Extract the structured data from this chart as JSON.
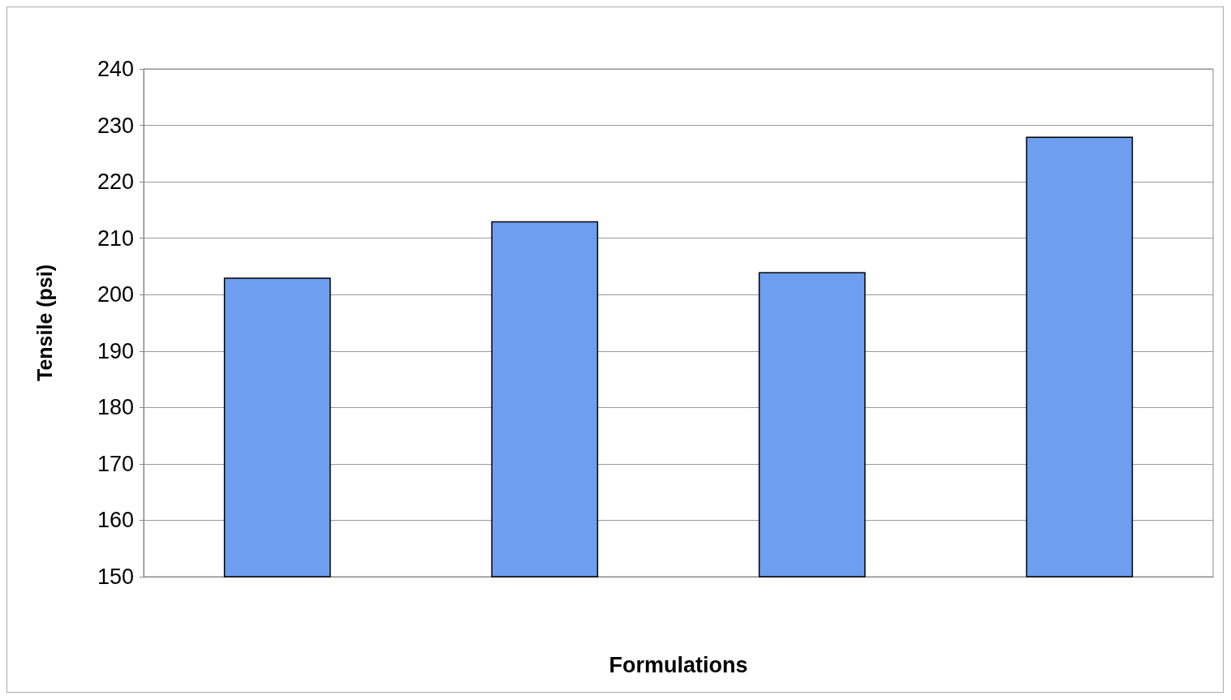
{
  "chart_data": {
    "type": "bar",
    "xlabel": "Formulations",
    "ylabel": "Tensile (psi)",
    "categories": [
      null,
      null,
      null,
      null
    ],
    "values": [
      203,
      213,
      204,
      228
    ],
    "color": "#6e9ef0",
    "ylim": [
      150,
      240
    ],
    "yticks": [
      150,
      160,
      170,
      180,
      190,
      200,
      210,
      220,
      230,
      240
    ],
    "grid": "y"
  }
}
